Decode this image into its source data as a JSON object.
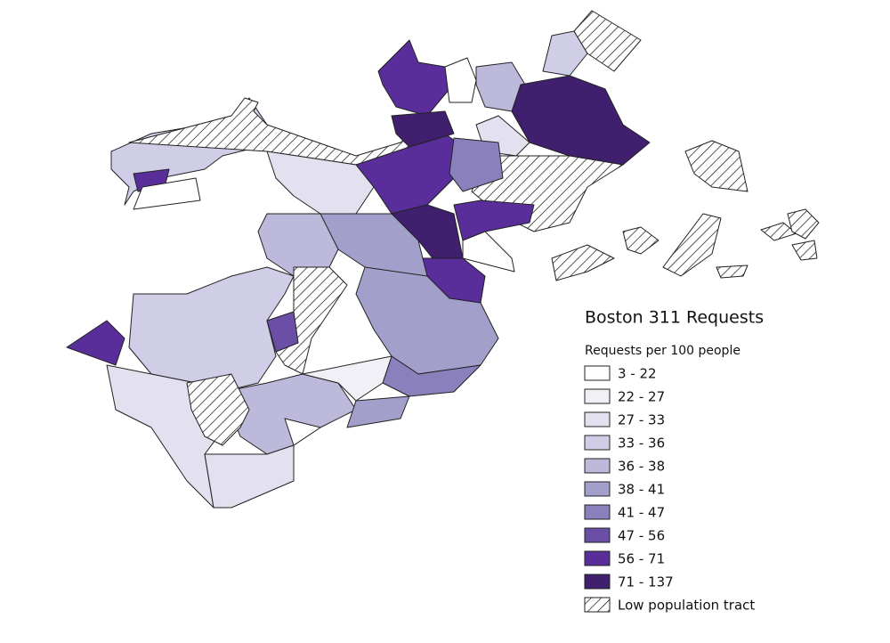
{
  "legend": {
    "title": "Boston 311 Requests",
    "subtitle": "Requests per 100 people",
    "items": [
      {
        "label": "3 - 22",
        "color": "#ffffff"
      },
      {
        "label": "22 - 27",
        "color": "#f2f0f7"
      },
      {
        "label": "27 - 33",
        "color": "#e3e1ef"
      },
      {
        "label": "33 - 36",
        "color": "#d0cee6"
      },
      {
        "label": "36 - 38",
        "color": "#bcb9da"
      },
      {
        "label": "38 - 41",
        "color": "#a39fcb"
      },
      {
        "label": "41 - 47",
        "color": "#8a80bc"
      },
      {
        "label": "47 - 56",
        "color": "#6b4ea6"
      },
      {
        "label": "56 - 71",
        "color": "#5a2e9a"
      },
      {
        "label": "71 - 137",
        "color": "#3f1f6e"
      }
    ],
    "low_population": {
      "label": "Low population tract"
    }
  }
}
